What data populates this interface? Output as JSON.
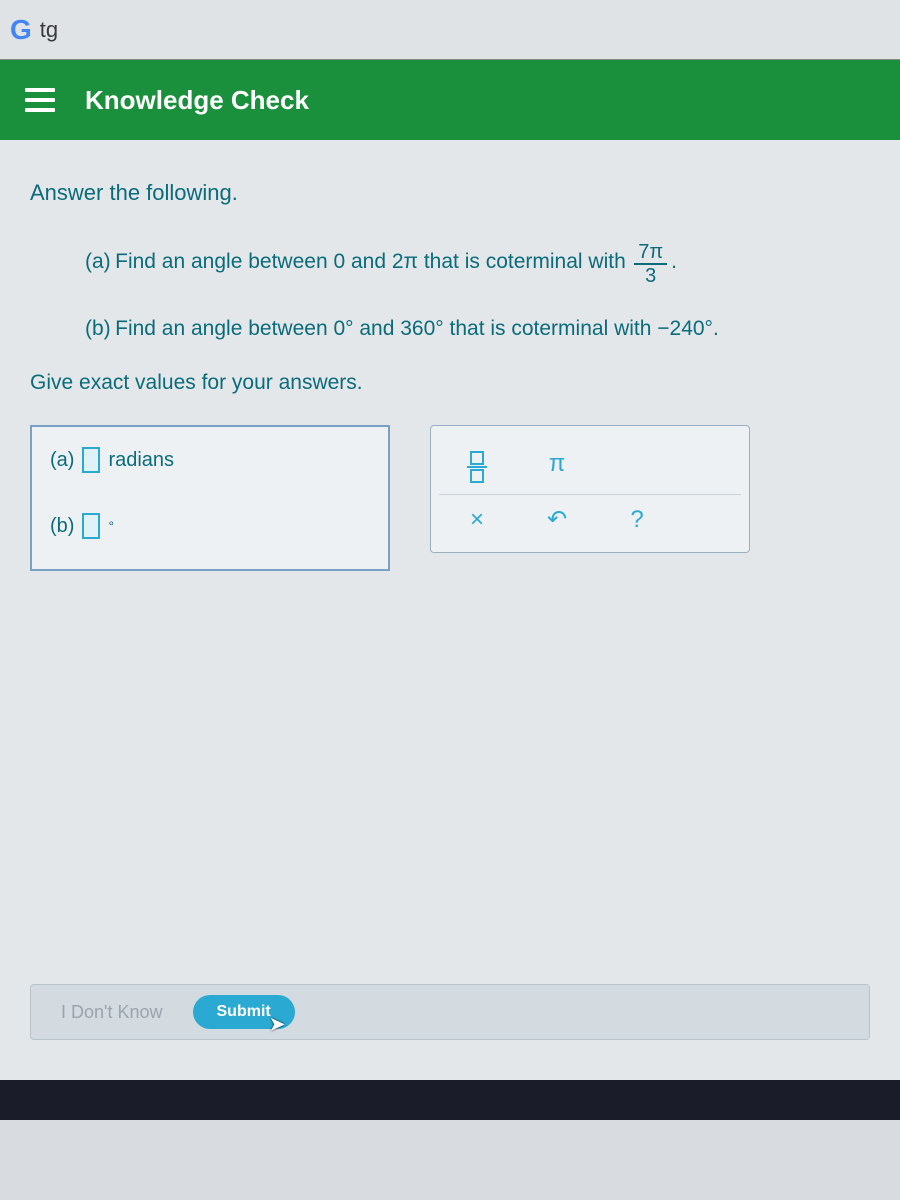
{
  "browser": {
    "tab_logo": "G",
    "tab_text": "tg"
  },
  "header": {
    "title": "Knowledge Check"
  },
  "content": {
    "instruction": "Answer the following.",
    "question_a": {
      "label": "(a)",
      "text_before": "Find an angle between 0 and 2π that is coterminal with",
      "frac_num": "7π",
      "frac_den": "3",
      "text_after": "."
    },
    "question_b": {
      "label": "(b)",
      "text": "Find an angle between 0° and 360° that is coterminal with −240°."
    },
    "hint": "Give exact values for your answers.",
    "answers": {
      "a_label": "(a)",
      "a_unit": "radians",
      "b_label": "(b)",
      "b_unit": "°"
    },
    "tools": {
      "pi": "π",
      "clear": "×",
      "undo": "↶",
      "help": "?"
    },
    "footer": {
      "idk": "I Don't Know",
      "submit": "Submit"
    }
  },
  "colors": {
    "header_bg": "#1a8f3c",
    "text_teal": "#0a6b7a",
    "accent_blue": "#2aa9d2",
    "panel_bg": "#eef1f4"
  }
}
